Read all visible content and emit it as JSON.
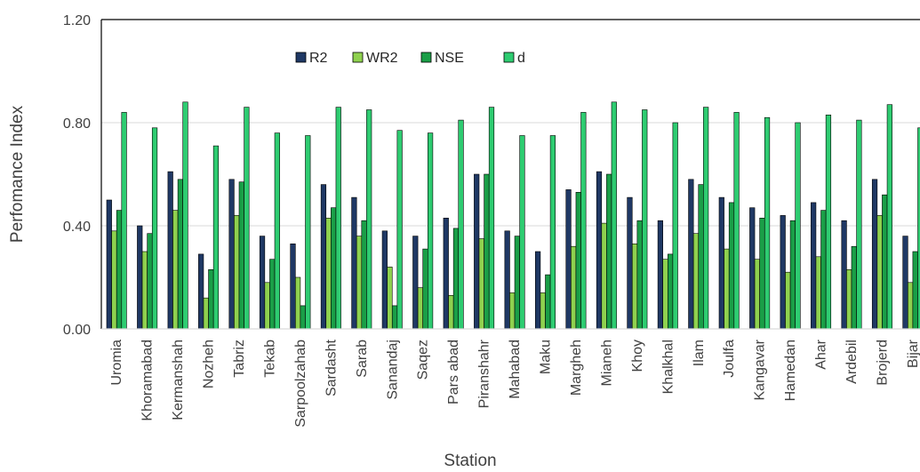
{
  "chart_data": {
    "type": "bar",
    "title": "",
    "xlabel": "Station",
    "ylabel": "Perfomance Index",
    "ylim": [
      0,
      1.2
    ],
    "yticks": [
      "0.00",
      "0.40",
      "0.80",
      "1.20"
    ],
    "grid": true,
    "legend_position": "top-left",
    "categories": [
      "Uromia",
      "Khoramabad",
      "Kermanshah",
      "Nozheh",
      "Tabriz",
      "Tekab",
      "Sarpoolzahab",
      "Sardasht",
      "Sarab",
      "Sanandaj",
      "Saqez",
      "Pars abad",
      "Piranshahr",
      "Mahabad",
      "Maku",
      "Margheh",
      "Mianeh",
      "Khoy",
      "Khalkhal",
      "Ilam",
      "Joulfa",
      "Kangavar",
      "Hamedan",
      "Ahar",
      "Ardebil",
      "Brojerd",
      "Bijar"
    ],
    "series": [
      {
        "name": "R2",
        "color": "#1f3864",
        "values": [
          0.5,
          0.4,
          0.61,
          0.29,
          0.58,
          0.36,
          0.33,
          0.56,
          0.51,
          0.38,
          0.36,
          0.43,
          0.6,
          0.38,
          0.3,
          0.54,
          0.61,
          0.51,
          0.42,
          0.58,
          0.51,
          0.47,
          0.44,
          0.49,
          0.42,
          0.58,
          0.36
        ]
      },
      {
        "name": "WR2",
        "color": "#8fd14f",
        "values": [
          0.38,
          0.3,
          0.46,
          0.12,
          0.44,
          0.18,
          0.2,
          0.43,
          0.36,
          0.24,
          0.16,
          0.13,
          0.35,
          0.14,
          0.14,
          0.32,
          0.41,
          0.33,
          0.27,
          0.37,
          0.31,
          0.27,
          0.22,
          0.28,
          0.23,
          0.44,
          0.18
        ]
      },
      {
        "name": "NSE",
        "color": "#1a9e47",
        "values": [
          0.46,
          0.37,
          0.58,
          0.23,
          0.57,
          0.27,
          0.09,
          0.47,
          0.42,
          0.09,
          0.31,
          0.39,
          0.6,
          0.36,
          0.21,
          0.53,
          0.6,
          0.42,
          0.29,
          0.56,
          0.49,
          0.43,
          0.42,
          0.46,
          0.32,
          0.52,
          0.3
        ]
      },
      {
        "name": "d",
        "color": "#2ecc71",
        "values": [
          0.84,
          0.78,
          0.88,
          0.71,
          0.86,
          0.76,
          0.75,
          0.86,
          0.85,
          0.77,
          0.76,
          0.81,
          0.86,
          0.75,
          0.75,
          0.84,
          0.88,
          0.85,
          0.8,
          0.86,
          0.84,
          0.82,
          0.8,
          0.83,
          0.81,
          0.87,
          0.78
        ]
      }
    ]
  }
}
